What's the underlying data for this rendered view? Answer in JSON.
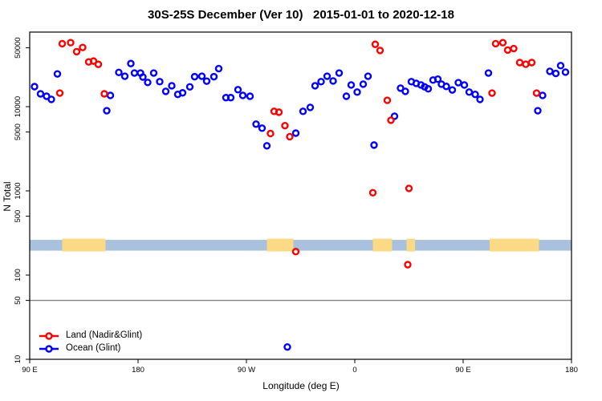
{
  "chart_data": {
    "type": "scatter",
    "title": "30S-25S December (Ver 10)   2015-01-01 to 2020-12-18",
    "xlabel": "Longitude (deg E)",
    "ylabel": "N Total",
    "y_scale": "log10",
    "ylim": [
      10,
      80000
    ],
    "x_range_unwrapped_deg": [
      90,
      540
    ],
    "x_ticks": [
      {
        "deg": 90,
        "label": "90 E"
      },
      {
        "deg": 180,
        "label": "180"
      },
      {
        "deg": 270,
        "label": "90 W"
      },
      {
        "deg": 360,
        "label": "0"
      },
      {
        "deg": 450,
        "label": "90 E"
      },
      {
        "deg": 540,
        "label": "180"
      }
    ],
    "y_ticks": [
      10,
      50,
      100,
      500,
      1000,
      5000,
      10000,
      50000
    ],
    "reference_line_value": 50,
    "reference_line_color": "#808080",
    "grid": "off",
    "legend_position": "bottom-left",
    "land_ocean_strip": {
      "ocean_color": "#a9c1dc",
      "land_color": "#fada85",
      "value_range": [
        195,
        262
      ],
      "land_segments_deg": [
        [
          117,
          153
        ],
        [
          287,
          309
        ],
        [
          375,
          391
        ],
        [
          403,
          410
        ],
        [
          472,
          513
        ]
      ]
    },
    "series": [
      {
        "name": "Land (Nadir&Glint)",
        "color": "#ff0000",
        "points": [
          [
            115,
            14500
          ],
          [
            117,
            56000
          ],
          [
            124,
            57500
          ],
          [
            129,
            45000
          ],
          [
            134,
            50500
          ],
          [
            139,
            34000
          ],
          [
            143,
            34800
          ],
          [
            147,
            31800
          ],
          [
            152,
            14200
          ],
          [
            290,
            4800
          ],
          [
            293,
            8800
          ],
          [
            297,
            8600
          ],
          [
            302,
            5950
          ],
          [
            306,
            4400
          ],
          [
            311,
            190
          ],
          [
            375,
            950
          ],
          [
            377,
            55000
          ],
          [
            381,
            46500
          ],
          [
            387,
            11900
          ],
          [
            390,
            6900
          ],
          [
            404,
            133
          ],
          [
            405,
            1070
          ],
          [
            474,
            14500
          ],
          [
            477,
            56000
          ],
          [
            483,
            57500
          ],
          [
            487,
            47000
          ],
          [
            492,
            49000
          ],
          [
            497,
            33400
          ],
          [
            502,
            31900
          ],
          [
            507,
            33400
          ],
          [
            511,
            14500
          ]
        ]
      },
      {
        "name": "Ocean (Glint)",
        "color": "#0000ff",
        "points": [
          [
            94,
            17300
          ],
          [
            99,
            14200
          ],
          [
            104,
            13300
          ],
          [
            108,
            12200
          ],
          [
            113,
            24500
          ],
          [
            154,
            8950
          ],
          [
            157,
            13600
          ],
          [
            164,
            25500
          ],
          [
            169,
            23000
          ],
          [
            174,
            32500
          ],
          [
            177,
            25100
          ],
          [
            182,
            25100
          ],
          [
            184,
            22500
          ],
          [
            188,
            19400
          ],
          [
            193,
            25100
          ],
          [
            198,
            19800
          ],
          [
            203,
            15200
          ],
          [
            208,
            17700
          ],
          [
            213,
            14000
          ],
          [
            217,
            14600
          ],
          [
            223,
            17200
          ],
          [
            227,
            22700
          ],
          [
            233,
            23000
          ],
          [
            237,
            20100
          ],
          [
            243,
            22700
          ],
          [
            247,
            28300
          ],
          [
            253,
            12800
          ],
          [
            257,
            12800
          ],
          [
            263,
            15900
          ],
          [
            267,
            13600
          ],
          [
            273,
            13300
          ],
          [
            278,
            6200
          ],
          [
            283,
            5550
          ],
          [
            287,
            3430
          ],
          [
            304,
            14
          ],
          [
            311,
            4850
          ],
          [
            317,
            8800
          ],
          [
            323,
            9800
          ],
          [
            327,
            17700
          ],
          [
            332,
            19800
          ],
          [
            337,
            23000
          ],
          [
            342,
            20200
          ],
          [
            347,
            25100
          ],
          [
            353,
            13300
          ],
          [
            357,
            18100
          ],
          [
            362,
            14900
          ],
          [
            367,
            18500
          ],
          [
            371,
            23000
          ],
          [
            376,
            3500
          ],
          [
            393,
            7700
          ],
          [
            398,
            16600
          ],
          [
            402,
            15200
          ],
          [
            407,
            19800
          ],
          [
            411,
            18900
          ],
          [
            415,
            18100
          ],
          [
            418,
            17200
          ],
          [
            421,
            16300
          ],
          [
            425,
            20700
          ],
          [
            429,
            21200
          ],
          [
            432,
            18500
          ],
          [
            436,
            17400
          ],
          [
            441,
            15800
          ],
          [
            446,
            19300
          ],
          [
            451,
            18100
          ],
          [
            455,
            14900
          ],
          [
            460,
            14000
          ],
          [
            464,
            12200
          ],
          [
            471,
            25100
          ],
          [
            512,
            8950
          ],
          [
            516,
            13600
          ],
          [
            522,
            26300
          ],
          [
            527,
            24800
          ],
          [
            531,
            30700
          ],
          [
            535,
            25700
          ]
        ]
      }
    ]
  }
}
